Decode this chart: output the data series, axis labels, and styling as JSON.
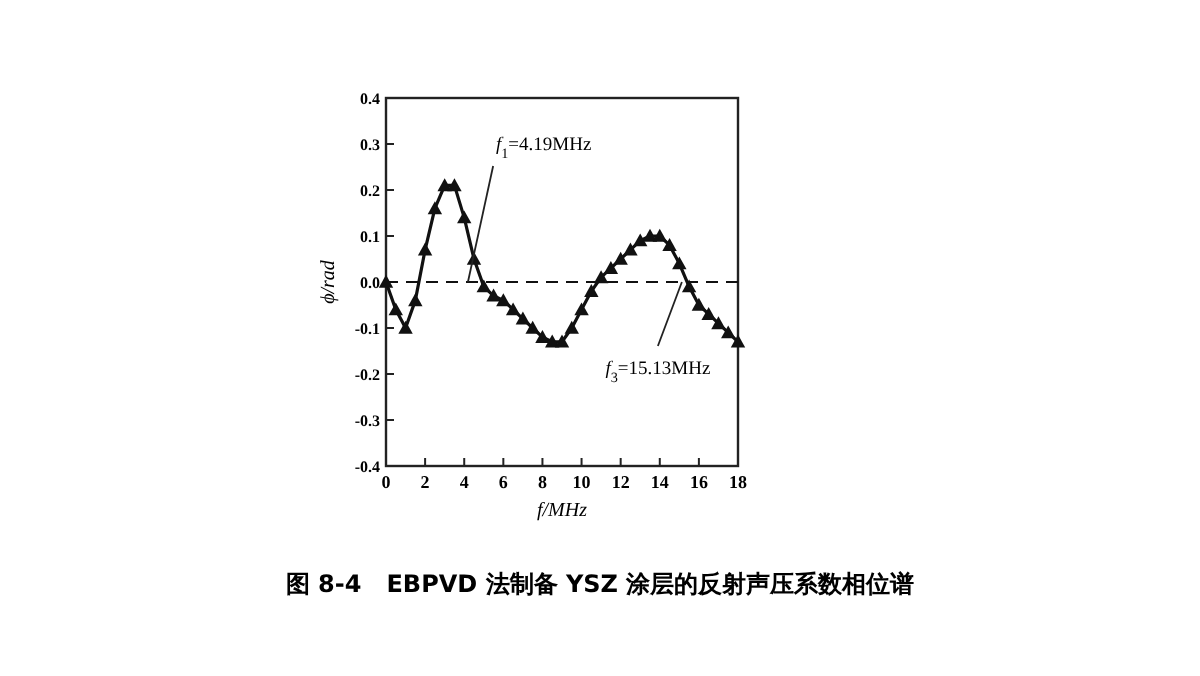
{
  "chart_data": {
    "type": "line",
    "title": "图 8-4   EBPVD 法制备 YSZ 涂层的反射声压系数相位谱",
    "xlabel": "f/MHz",
    "ylabel": "ϕ/rad",
    "x": [
      0,
      0.5,
      1,
      1.5,
      2,
      2.5,
      3,
      3.5,
      4,
      4.5,
      5,
      5.5,
      6,
      6.5,
      7,
      7.5,
      8,
      8.5,
      9,
      9.5,
      10,
      10.5,
      11,
      11.5,
      12,
      12.5,
      13,
      13.5,
      14,
      14.5,
      15,
      15.5,
      16,
      16.5,
      17,
      17.5,
      18
    ],
    "series": [
      {
        "color": "#111111",
        "values": [
          0.0,
          -0.06,
          -0.1,
          -0.04,
          0.07,
          0.16,
          0.21,
          0.21,
          0.14,
          0.05,
          -0.01,
          -0.03,
          -0.04,
          -0.06,
          -0.08,
          -0.1,
          -0.12,
          -0.13,
          -0.13,
          -0.1,
          -0.06,
          -0.02,
          0.01,
          0.03,
          0.05,
          0.07,
          0.09,
          0.1,
          0.1,
          0.08,
          0.04,
          -0.01,
          -0.05,
          -0.07,
          -0.09,
          -0.11,
          -0.13
        ]
      }
    ],
    "xlim": [
      0,
      18
    ],
    "xticks": [
      0,
      2,
      4,
      6,
      8,
      10,
      12,
      14,
      16,
      18
    ],
    "ylim": [
      -0.4,
      0.4
    ],
    "yticks": [
      -0.4,
      -0.3,
      -0.2,
      -0.1,
      {
        "value": 0,
        "label": "0.0"
      },
      0.1,
      0.2,
      0.3,
      0.4
    ],
    "ref_lines": [
      {
        "axis": "y",
        "value": 0,
        "line_style": "dashed",
        "color": "#111111"
      }
    ],
    "annotations": [
      {
        "text": "f$_{1}$=4.19MHz",
        "x": 4.19,
        "y": 0
      },
      {
        "text": "f$_{3}$=15.13MHz",
        "x": 15.13,
        "y": 0
      }
    ],
    "marker": "triangle",
    "line_style": "solid",
    "grid": false
  }
}
